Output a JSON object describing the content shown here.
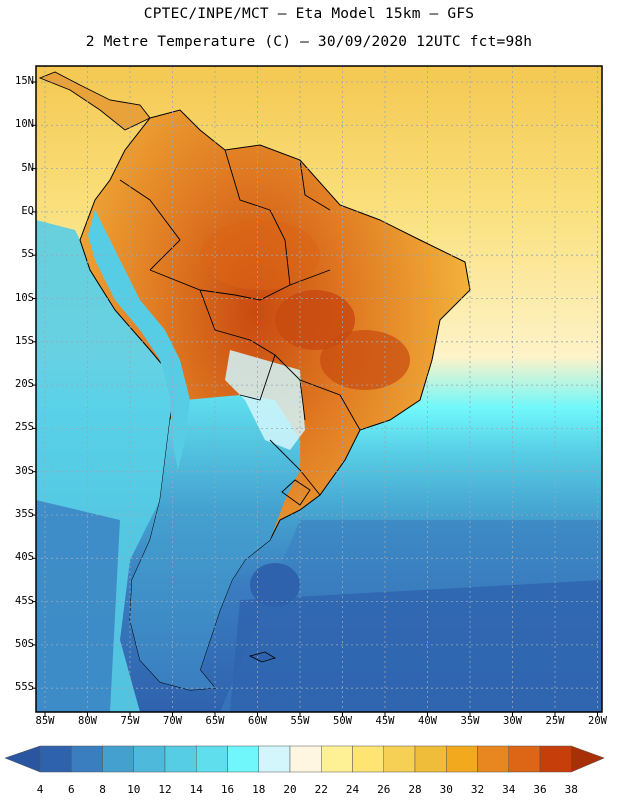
{
  "title_line1": "CPTEC/INPE/MCT –  Eta Model 15km – GFS",
  "title_line2": "2 Metre Temperature (C) – 30/09/2020 12UTC fct=98h",
  "lat_labels": [
    "15N",
    "10N",
    "5N",
    "EQ",
    "5S",
    "10S",
    "15S",
    "20S",
    "25S",
    "30S",
    "35S",
    "40S",
    "45S",
    "50S",
    "55S"
  ],
  "lon_labels": [
    "85W",
    "80W",
    "75W",
    "70W",
    "65W",
    "60W",
    "55W",
    "50W",
    "45W",
    "40W",
    "35W",
    "30W",
    "25W",
    "20W"
  ],
  "colorbar": {
    "labels": [
      "4",
      "6",
      "8",
      "10",
      "12",
      "14",
      "16",
      "18",
      "20",
      "22",
      "24",
      "26",
      "28",
      "30",
      "32",
      "34",
      "36",
      "38"
    ],
    "colors": [
      "#2f62ad",
      "#3a7ec0",
      "#44a0cf",
      "#4fb9dc",
      "#57cde5",
      "#5fdfee",
      "#6ff7fb",
      "#d2f6fb",
      "#fef6e0",
      "#fef195",
      "#fde473",
      "#f6cf55",
      "#f0bd3b",
      "#f2a91d",
      "#e8861f",
      "#dc6516",
      "#c63f0a",
      "#b42e0a"
    ],
    "low_arrow_color": "#2a55a0",
    "high_arrow_color": "#a83008"
  },
  "map_colors": {
    "ocean_north": "#f5cf5a",
    "ocean_north_light": "#fce78a",
    "ocean_cyan": "#57cde5",
    "ocean_mid_blue": "#44a0cf",
    "ocean_south": "#2f62ad",
    "land_hot": "#e9862a",
    "land_very_hot": "#c84a10",
    "land_warm": "#f2b23a",
    "andes_cold": "#5fdfee",
    "andes_colder": "#3a7ec0",
    "gridline": "#9aa7b5"
  }
}
